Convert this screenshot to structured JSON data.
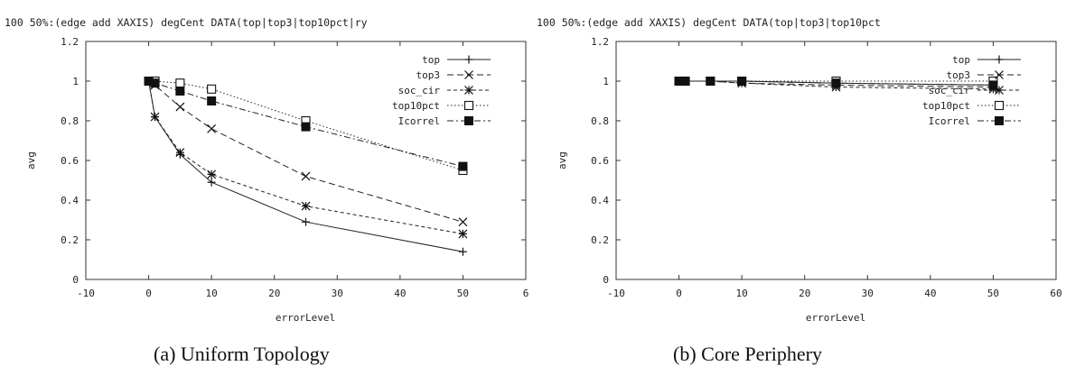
{
  "figure": {
    "captions": [
      "(a)  Uniform Topology",
      "(b) Core Periphery"
    ]
  },
  "chart_data": [
    {
      "type": "line",
      "title": "100 50%:(edge add XAXIS) degCent DATA(top|top3|top10pct|ry",
      "xlabel": "errorLevel",
      "ylabel": "avg",
      "xlim": [
        -10,
        60
      ],
      "ylim": [
        0,
        1.2
      ],
      "xticks": [
        "-10",
        "0",
        "10",
        "20",
        "30",
        "40",
        "50",
        "6"
      ],
      "yticks": [
        "0",
        "0.2",
        "0.4",
        "0.6",
        "0.8",
        "1",
        "1.2"
      ],
      "grid": false,
      "legend_position": "top-right",
      "x": [
        0,
        1,
        5,
        10,
        25,
        50
      ],
      "series": [
        {
          "name": "top",
          "values": [
            1.0,
            0.82,
            0.63,
            0.49,
            0.29,
            0.14
          ],
          "marker": "plus",
          "dash": "solid"
        },
        {
          "name": "top3",
          "values": [
            1.0,
            0.98,
            0.87,
            0.76,
            0.52,
            0.29
          ],
          "marker": "x",
          "dash": "dash"
        },
        {
          "name": "soc_cir",
          "values": [
            1.0,
            0.82,
            0.64,
            0.53,
            0.37,
            0.23
          ],
          "marker": "star",
          "dash": "dense-dash"
        },
        {
          "name": "top10pct",
          "values": [
            1.0,
            1.0,
            0.99,
            0.96,
            0.8,
            0.55
          ],
          "marker": "open-square",
          "dash": "dot"
        },
        {
          "name": "Icorrel",
          "values": [
            1.0,
            0.99,
            0.95,
            0.9,
            0.77,
            0.57
          ],
          "marker": "filled-square",
          "dash": "dash-dot"
        }
      ]
    },
    {
      "type": "line",
      "title": "100 50%:(edge add XAXIS) degCent DATA(top|top3|top10pct",
      "xlabel": "errorLevel",
      "ylabel": "avg",
      "xlim": [
        -10,
        60
      ],
      "ylim": [
        0,
        1.2
      ],
      "xticks": [
        "-10",
        "0",
        "10",
        "20",
        "30",
        "40",
        "50",
        "60"
      ],
      "yticks": [
        "0",
        "0.2",
        "0.4",
        "0.6",
        "0.8",
        "1",
        "1.2"
      ],
      "grid": false,
      "legend_position": "top-right",
      "x": [
        0,
        1,
        5,
        10,
        25,
        50
      ],
      "series": [
        {
          "name": "top",
          "values": [
            1.0,
            1.0,
            1.0,
            1.0,
            0.99,
            0.98
          ],
          "marker": "plus",
          "dash": "solid"
        },
        {
          "name": "top3",
          "values": [
            1.0,
            1.0,
            1.0,
            0.99,
            0.98,
            0.97
          ],
          "marker": "x",
          "dash": "dash"
        },
        {
          "name": "soc_cir",
          "values": [
            1.0,
            1.0,
            1.0,
            0.99,
            0.97,
            0.96
          ],
          "marker": "star",
          "dash": "dense-dash"
        },
        {
          "name": "top10pct",
          "values": [
            1.0,
            1.0,
            1.0,
            1.0,
            1.0,
            1.0
          ],
          "marker": "open-square",
          "dash": "dot"
        },
        {
          "name": "Icorrel",
          "values": [
            1.0,
            1.0,
            1.0,
            1.0,
            0.99,
            0.98
          ],
          "marker": "filled-square",
          "dash": "dash-dot"
        }
      ]
    }
  ]
}
